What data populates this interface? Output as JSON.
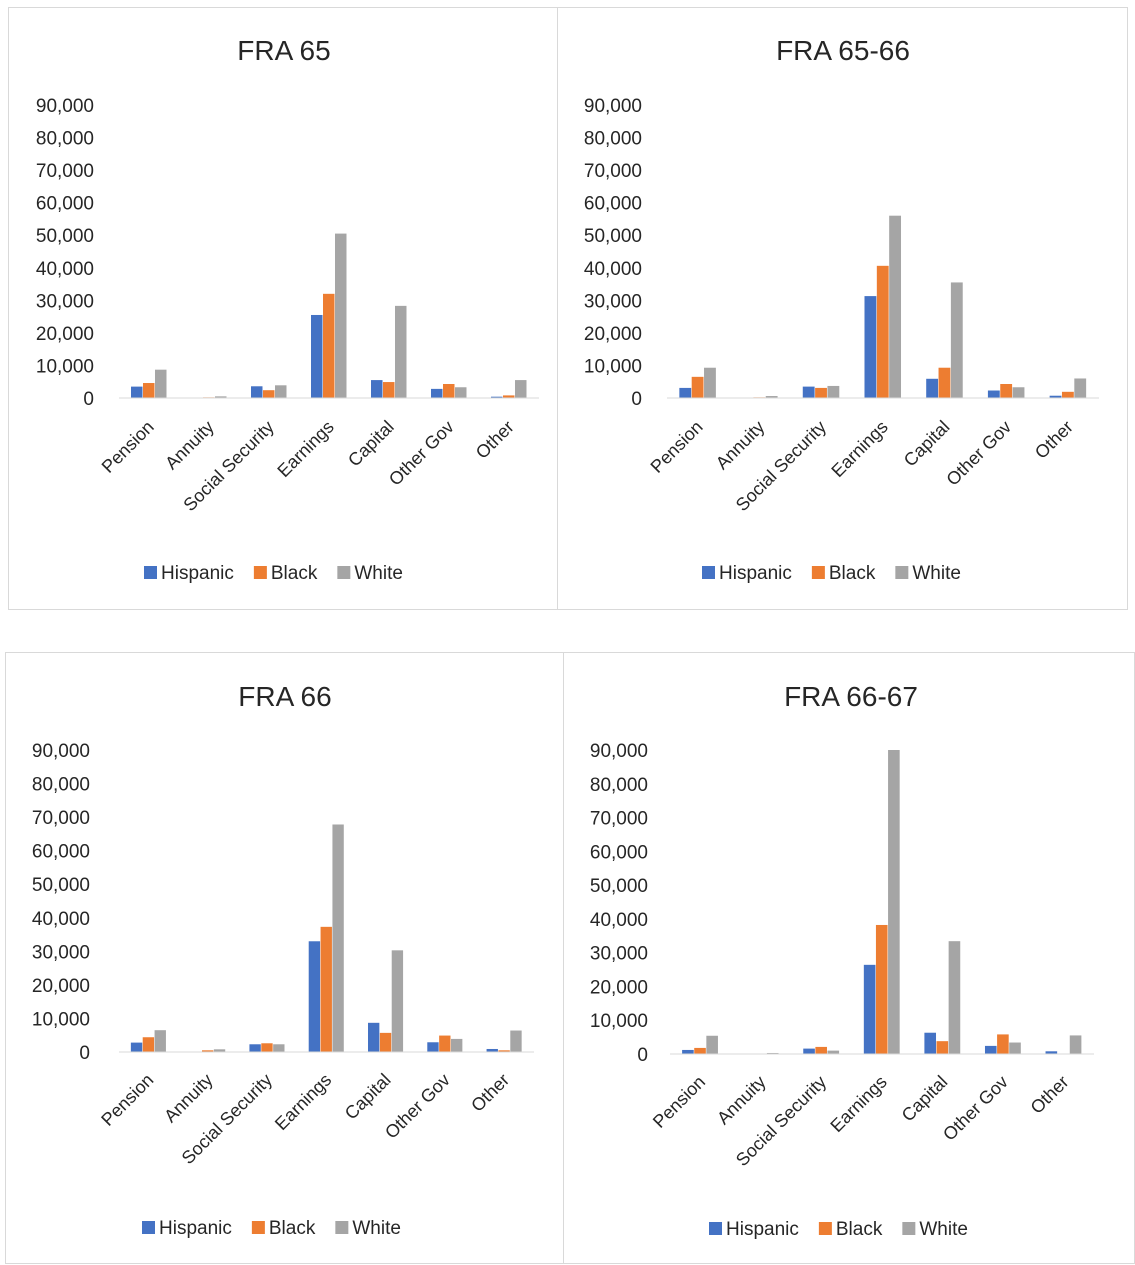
{
  "chart_data": [
    {
      "type": "bar",
      "title": "FRA 65",
      "categories": [
        "Pension",
        "Annuity",
        "Social Security",
        "Earnings",
        "Capital",
        "Other Gov",
        "Other"
      ],
      "series": [
        {
          "name": "Hispanic",
          "color": "#4472C4",
          "values": [
            3500,
            0,
            3600,
            25500,
            5500,
            2800,
            400
          ]
        },
        {
          "name": "Black",
          "color": "#ED7D31",
          "values": [
            4600,
            200,
            2400,
            32000,
            4900,
            4300,
            800
          ]
        },
        {
          "name": "White",
          "color": "#A5A5A5",
          "values": [
            8700,
            500,
            3900,
            50500,
            28300,
            3300,
            5500
          ]
        }
      ],
      "ylim": [
        0,
        90000
      ],
      "yticks": [
        "90,000",
        "80,000",
        "70,000",
        "60,000",
        "50,000",
        "40,000",
        "30,000",
        "20,000",
        "10,000",
        "0"
      ],
      "legend_position": "bottom",
      "grid": false
    },
    {
      "type": "bar",
      "title": "FRA 65-66",
      "categories": [
        "Pension",
        "Annuity",
        "Social Security",
        "Earnings",
        "Capital",
        "Other Gov",
        "Other"
      ],
      "series": [
        {
          "name": "Hispanic",
          "color": "#4472C4",
          "values": [
            3100,
            0,
            3500,
            31300,
            5900,
            2300,
            700
          ]
        },
        {
          "name": "Black",
          "color": "#ED7D31",
          "values": [
            6500,
            200,
            3100,
            40600,
            9300,
            4300,
            1900
          ]
        },
        {
          "name": "White",
          "color": "#A5A5A5",
          "values": [
            9300,
            600,
            3700,
            56000,
            35500,
            3300,
            6000
          ]
        }
      ],
      "ylim": [
        0,
        90000
      ],
      "yticks": [
        "90,000",
        "80,000",
        "70,000",
        "60,000",
        "50,000",
        "40,000",
        "30,000",
        "20,000",
        "10,000",
        "0"
      ],
      "legend_position": "bottom",
      "grid": false
    },
    {
      "type": "bar",
      "title": "FRA 66",
      "categories": [
        "Pension",
        "Annuity",
        "Social Security",
        "Earnings",
        "Capital",
        "Other Gov",
        "Other"
      ],
      "series": [
        {
          "name": "Hispanic",
          "color": "#4472C4",
          "values": [
            2800,
            0,
            2300,
            33000,
            8700,
            2900,
            900
          ]
        },
        {
          "name": "Black",
          "color": "#ED7D31",
          "values": [
            4400,
            500,
            2600,
            37300,
            5700,
            4900,
            500
          ]
        },
        {
          "name": "White",
          "color": "#A5A5A5",
          "values": [
            6500,
            800,
            2300,
            67800,
            30300,
            3900,
            6400
          ]
        }
      ],
      "ylim": [
        0,
        90000
      ],
      "yticks": [
        "90,000",
        "80,000",
        "70,000",
        "60,000",
        "50,000",
        "40,000",
        "30,000",
        "20,000",
        "10,000",
        "0"
      ],
      "legend_position": "bottom",
      "grid": false
    },
    {
      "type": "bar",
      "title": "FRA 66-67",
      "categories": [
        "Pension",
        "Annuity",
        "Social Security",
        "Earnings",
        "Capital",
        "Other Gov",
        "Other"
      ],
      "series": [
        {
          "name": "Hispanic",
          "color": "#4472C4",
          "values": [
            1200,
            0,
            1600,
            26400,
            6300,
            2400,
            800
          ]
        },
        {
          "name": "Black",
          "color": "#ED7D31",
          "values": [
            1800,
            0,
            2100,
            38200,
            3800,
            5800,
            0
          ]
        },
        {
          "name": "White",
          "color": "#A5A5A5",
          "values": [
            5400,
            300,
            1000,
            90000,
            33400,
            3400,
            5500
          ]
        }
      ],
      "ylim": [
        0,
        90000
      ],
      "yticks": [
        "90,000",
        "80,000",
        "70,000",
        "60,000",
        "50,000",
        "40,000",
        "30,000",
        "20,000",
        "10,000",
        "0"
      ],
      "legend_position": "bottom",
      "grid": false
    }
  ]
}
